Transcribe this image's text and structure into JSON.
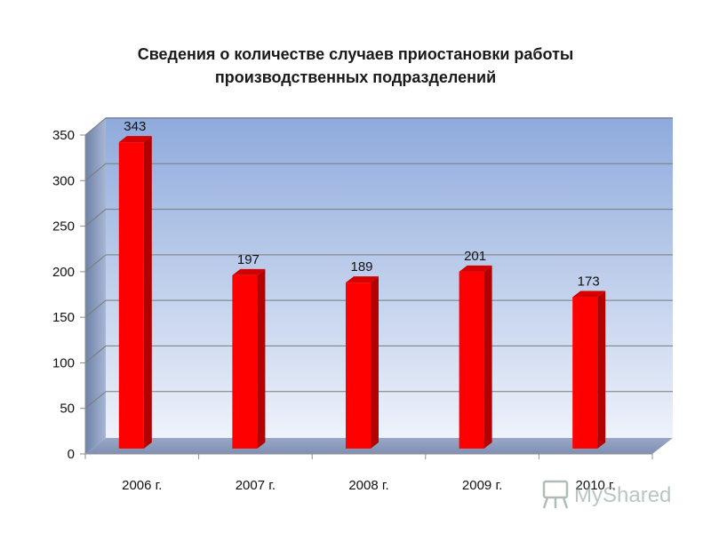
{
  "chart_data": {
    "type": "bar",
    "title_line1": "Сведения о количестве случаев приостановки работы",
    "title_line2": "производственных подразделений",
    "categories": [
      "2006 г.",
      "2007 г.",
      "2008 г.",
      "2009 г.",
      "2010 г."
    ],
    "values": [
      343,
      197,
      189,
      201,
      173
    ],
    "ylim": [
      0,
      350
    ],
    "yticks": [
      "0",
      "50",
      "100",
      "150",
      "200",
      "250",
      "300",
      "350"
    ],
    "grid": true,
    "style": "3d-column",
    "colors": {
      "bar": "#ff0000",
      "bar_side": "#b30000",
      "bar_top": "#d40000",
      "wall_top": "#8eaadc",
      "wall_bottom": "#e8eef8"
    }
  },
  "watermark": {
    "label": "MyShared"
  }
}
